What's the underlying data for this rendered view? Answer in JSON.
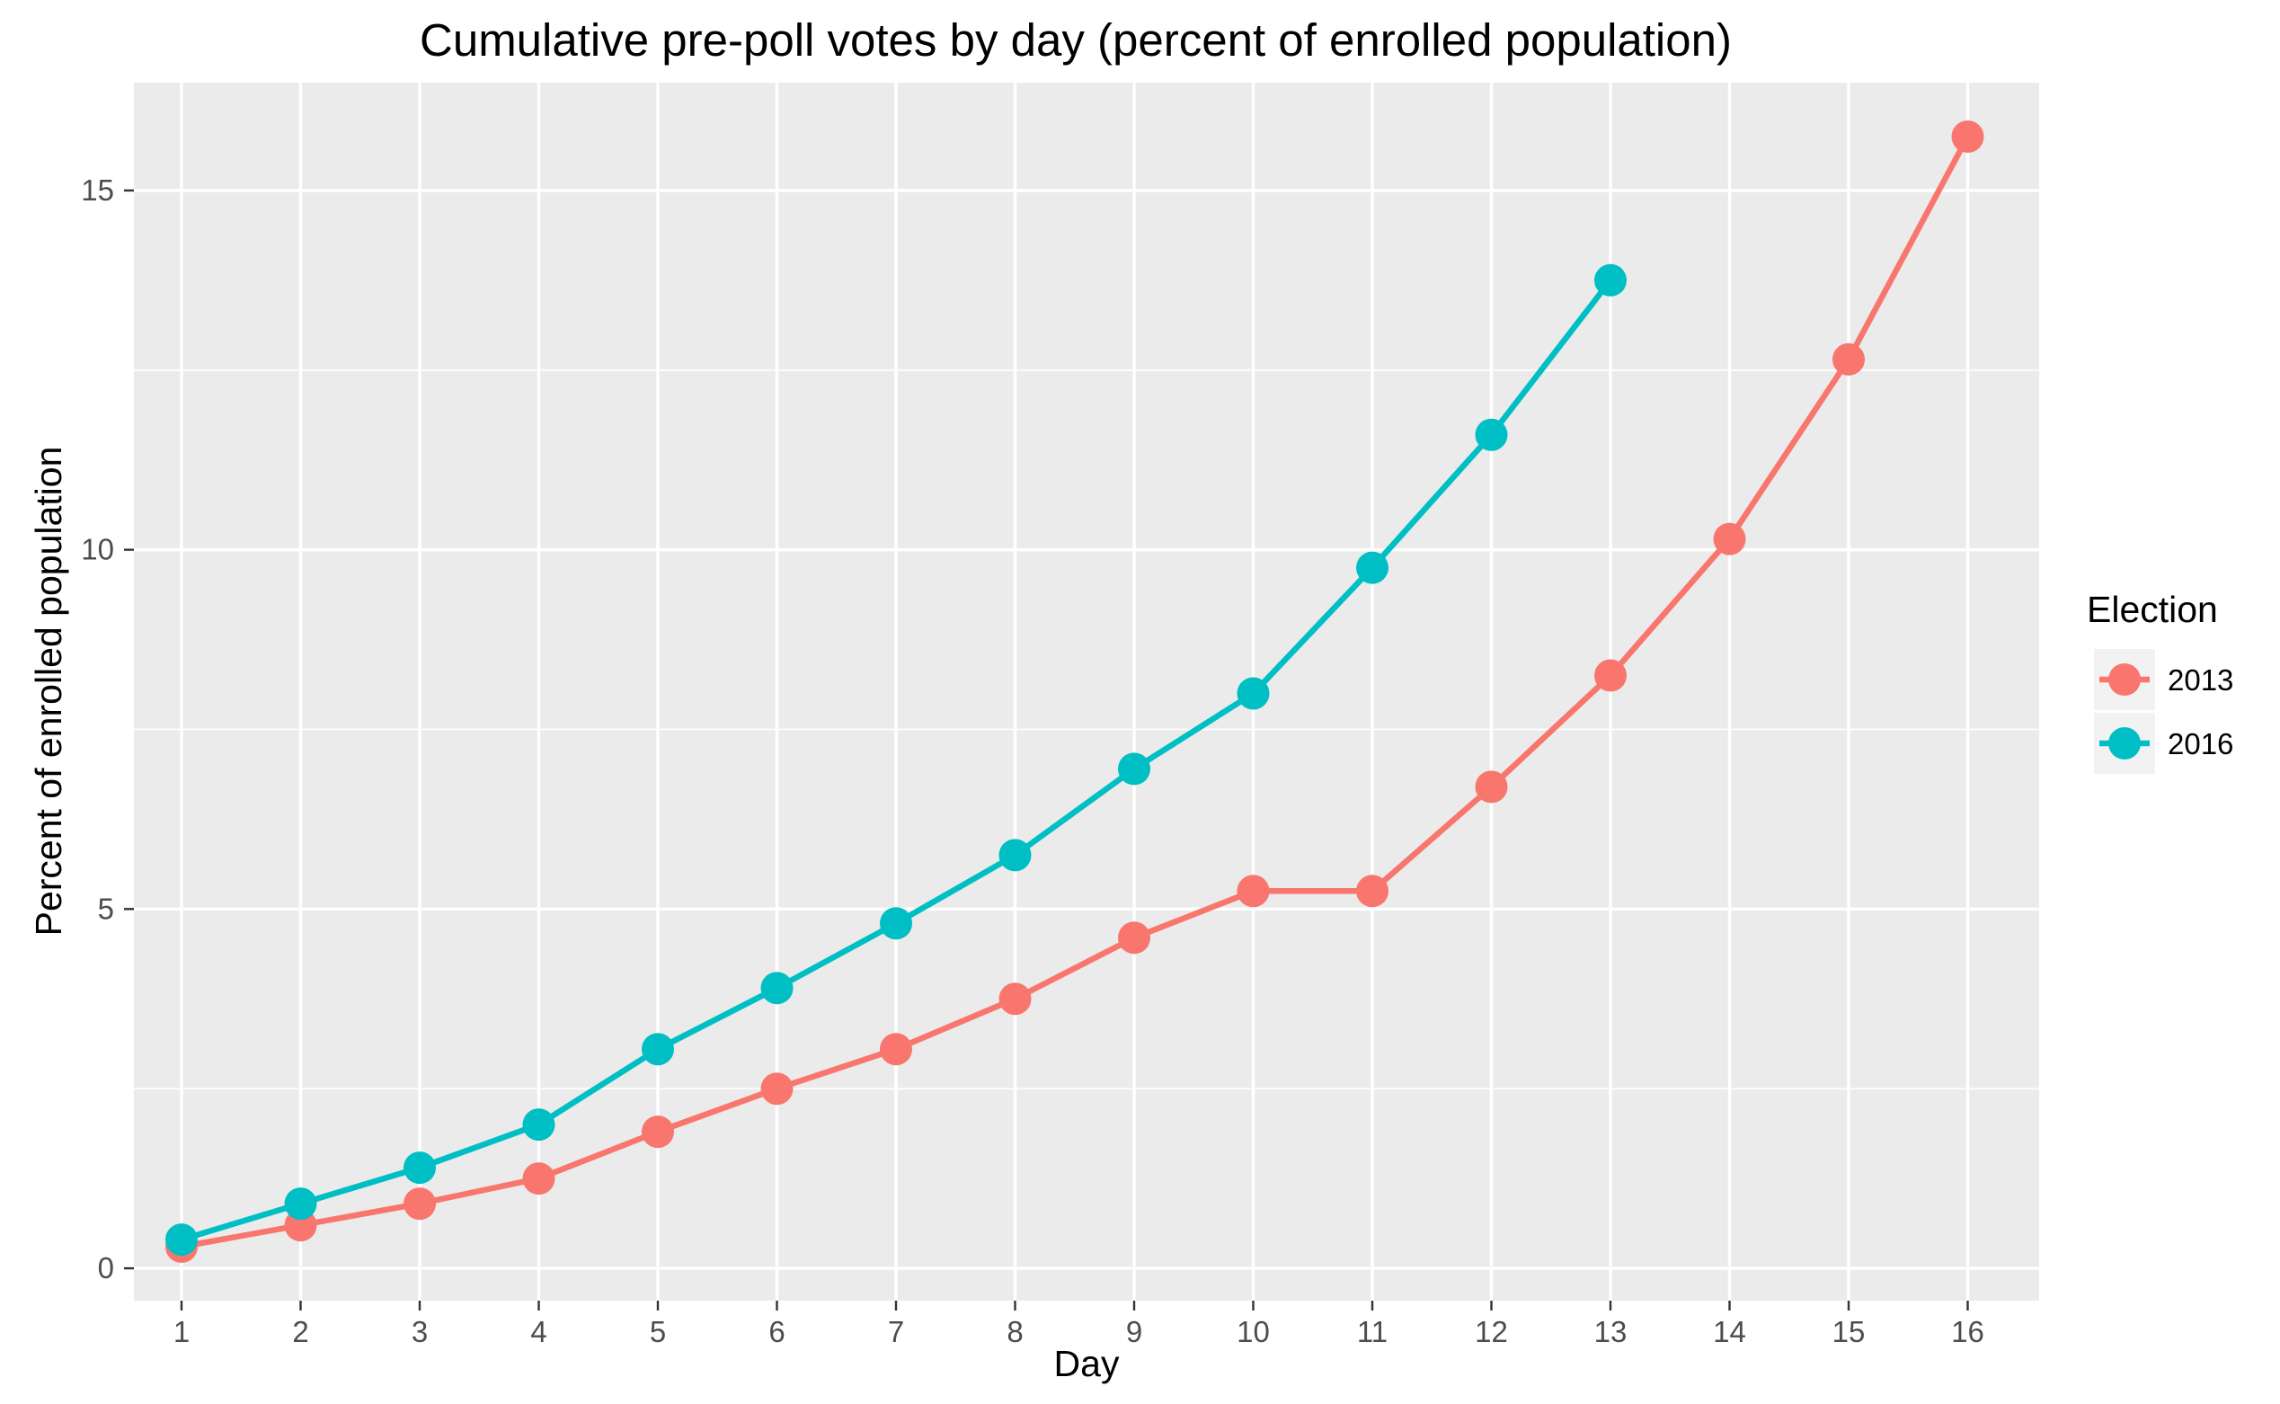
{
  "chart_data": {
    "type": "line",
    "title": "Cumulative pre-poll votes by day (percent of enrolled population)",
    "xlabel": "Day",
    "ylabel": "Percent of enrolled population",
    "x_ticks": [
      "1",
      "2",
      "3",
      "4",
      "5",
      "6",
      "7",
      "8",
      "9",
      "10",
      "11",
      "12",
      "13",
      "14",
      "15",
      "16"
    ],
    "y_ticks": [
      "0",
      "5",
      "10",
      "15"
    ],
    "y_tick_values": [
      0,
      5,
      10,
      15
    ],
    "xlim": [
      0.6,
      16.6
    ],
    "ylim": [
      -0.45,
      16.5
    ],
    "grid": true,
    "markers": "circle",
    "legend": {
      "title": "Election",
      "position": "right"
    },
    "series": [
      {
        "name": "2013",
        "color": "#F8766D",
        "x": [
          1,
          2,
          3,
          4,
          5,
          6,
          7,
          8,
          9,
          10,
          11,
          12,
          13,
          14,
          15,
          16
        ],
        "values": [
          0.3,
          0.6,
          0.9,
          1.25,
          1.9,
          2.5,
          3.05,
          3.75,
          4.6,
          5.25,
          5.25,
          6.7,
          8.25,
          10.15,
          12.65,
          15.75
        ]
      },
      {
        "name": "2016",
        "color": "#00BFC4",
        "x": [
          1,
          2,
          3,
          4,
          5,
          6,
          7,
          8,
          9,
          10,
          11,
          12,
          13
        ],
        "values": [
          0.4,
          0.9,
          1.4,
          2.0,
          3.05,
          3.9,
          4.8,
          5.75,
          6.95,
          8.0,
          9.75,
          11.6,
          13.75
        ]
      }
    ]
  }
}
